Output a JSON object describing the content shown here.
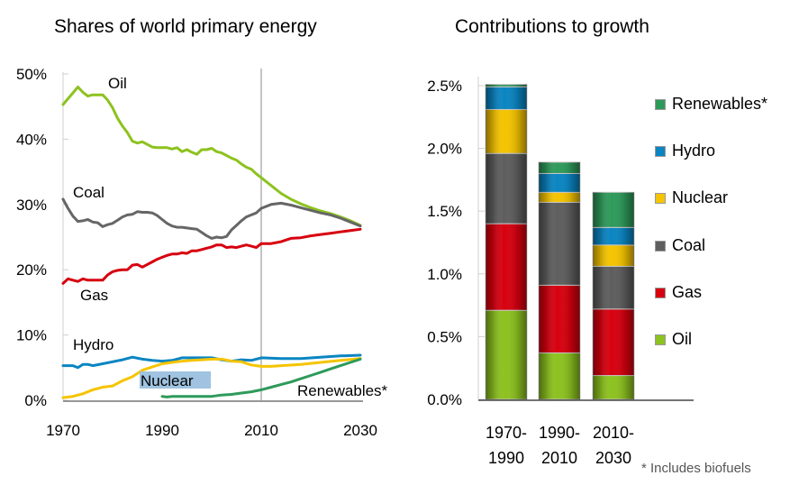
{
  "chart_data": [
    {
      "type": "line",
      "title": "Shares of world primary energy",
      "xlabel": "",
      "ylabel": "",
      "xlim": [
        1970,
        2030
      ],
      "ylim": [
        0,
        50
      ],
      "x_ticks": [
        "1970",
        "1990",
        "2010",
        "2030"
      ],
      "y_ticks": [
        "0%",
        "10%",
        "20%",
        "30%",
        "40%",
        "50%"
      ],
      "reference_line_x": 2010,
      "grid": false,
      "series": [
        {
          "name": "Oil",
          "label": "Oil",
          "color": "#8dc21f",
          "x": [
            1970,
            1971,
            1972,
            1973,
            1974,
            1975,
            1976,
            1977,
            1978,
            1979,
            1980,
            1981,
            1982,
            1983,
            1984,
            1985,
            1986,
            1987,
            1988,
            1989,
            1990,
            1991,
            1992,
            1993,
            1994,
            1995,
            1996,
            1997,
            1998,
            1999,
            2000,
            2001,
            2002,
            2003,
            2004,
            2005,
            2006,
            2007,
            2008,
            2009,
            2010,
            2012,
            2014,
            2016,
            2018,
            2020,
            2022,
            2024,
            2026,
            2028,
            2030
          ],
          "y": [
            45.3,
            46.2,
            47.1,
            48.0,
            47.2,
            46.6,
            46.8,
            46.8,
            46.8,
            46.0,
            44.8,
            43.2,
            42.0,
            41.0,
            39.7,
            39.4,
            39.6,
            39.2,
            38.8,
            38.7,
            38.7,
            38.7,
            38.5,
            38.7,
            38.1,
            38.4,
            38.0,
            37.7,
            38.4,
            38.4,
            38.6,
            38.1,
            37.9,
            37.5,
            37.1,
            36.8,
            36.2,
            35.7,
            35.4,
            34.7,
            34.1,
            32.9,
            31.7,
            30.8,
            30.1,
            29.5,
            29.0,
            28.6,
            28.1,
            27.5,
            26.8
          ]
        },
        {
          "name": "Coal",
          "label": "Coal",
          "color": "#666666",
          "x": [
            1970,
            1971,
            1972,
            1973,
            1974,
            1975,
            1976,
            1977,
            1978,
            1979,
            1980,
            1981,
            1982,
            1983,
            1984,
            1985,
            1986,
            1987,
            1988,
            1989,
            1990,
            1991,
            1992,
            1993,
            1994,
            1995,
            1996,
            1997,
            1998,
            1999,
            2000,
            2001,
            2002,
            2003,
            2004,
            2005,
            2006,
            2007,
            2008,
            2009,
            2010,
            2012,
            2014,
            2016,
            2018,
            2020,
            2022,
            2024,
            2026,
            2028,
            2030
          ],
          "y": [
            30.8,
            29.4,
            28.2,
            27.4,
            27.5,
            27.7,
            27.3,
            27.2,
            26.6,
            26.9,
            27.1,
            27.6,
            28.1,
            28.4,
            28.5,
            28.9,
            28.8,
            28.8,
            28.7,
            28.3,
            27.7,
            27.1,
            26.7,
            26.5,
            26.5,
            26.4,
            26.3,
            26.2,
            25.7,
            25.2,
            24.8,
            25.0,
            24.9,
            25.1,
            26.1,
            26.8,
            27.5,
            28.1,
            28.4,
            28.7,
            29.4,
            30.0,
            30.2,
            29.9,
            29.5,
            29.1,
            28.7,
            28.4,
            27.9,
            27.3,
            26.7
          ]
        },
        {
          "name": "Gas",
          "label": "Gas",
          "color": "#d7000f",
          "x": [
            1970,
            1971,
            1972,
            1973,
            1974,
            1975,
            1976,
            1977,
            1978,
            1979,
            1980,
            1981,
            1982,
            1983,
            1984,
            1985,
            1986,
            1987,
            1988,
            1989,
            1990,
            1991,
            1992,
            1993,
            1994,
            1995,
            1996,
            1997,
            1998,
            1999,
            2000,
            2001,
            2002,
            2003,
            2004,
            2005,
            2006,
            2007,
            2008,
            2009,
            2010,
            2012,
            2014,
            2016,
            2018,
            2020,
            2022,
            2024,
            2026,
            2028,
            2030
          ],
          "y": [
            17.9,
            18.6,
            18.4,
            18.2,
            18.6,
            18.4,
            18.4,
            18.4,
            18.4,
            19.2,
            19.7,
            19.9,
            20.0,
            20.0,
            20.7,
            20.8,
            20.4,
            20.8,
            21.2,
            21.6,
            21.9,
            22.2,
            22.4,
            22.4,
            22.6,
            22.5,
            22.9,
            22.9,
            23.1,
            23.3,
            23.5,
            23.8,
            23.8,
            23.4,
            23.5,
            23.4,
            23.6,
            23.8,
            23.6,
            23.4,
            24.0,
            24.0,
            24.3,
            24.8,
            24.9,
            25.2,
            25.4,
            25.6,
            25.8,
            26.0,
            26.2
          ]
        },
        {
          "name": "Hydro",
          "label": "Hydro",
          "color": "#0a85c2",
          "x": [
            1970,
            1972,
            1973,
            1974,
            1975,
            1976,
            1978,
            1980,
            1982,
            1984,
            1986,
            1988,
            1990,
            1992,
            1994,
            1996,
            1998,
            2000,
            2002,
            2004,
            2006,
            2008,
            2010,
            2014,
            2018,
            2022,
            2026,
            2030
          ],
          "y": [
            5.3,
            5.3,
            5.0,
            5.5,
            5.5,
            5.3,
            5.6,
            5.9,
            6.2,
            6.6,
            6.3,
            6.1,
            6.0,
            6.1,
            6.5,
            6.5,
            6.5,
            6.5,
            6.2,
            6.0,
            6.2,
            6.1,
            6.5,
            6.4,
            6.4,
            6.6,
            6.8,
            6.9
          ]
        },
        {
          "name": "Nuclear",
          "label": "Nuclear",
          "color": "#f5c400",
          "x": [
            1970,
            1972,
            1974,
            1976,
            1978,
            1980,
            1982,
            1984,
            1986,
            1988,
            1990,
            1992,
            1994,
            1996,
            1998,
            2000,
            2002,
            2004,
            2006,
            2008,
            2010,
            2012,
            2014,
            2018,
            2022,
            2026,
            2030
          ],
          "y": [
            0.4,
            0.6,
            1.0,
            1.6,
            2.0,
            2.2,
            3.0,
            3.6,
            4.6,
            5.1,
            5.6,
            5.8,
            6.0,
            6.1,
            6.2,
            6.3,
            6.3,
            6.0,
            5.9,
            5.4,
            5.2,
            5.2,
            5.3,
            5.5,
            5.8,
            6.1,
            6.4
          ]
        },
        {
          "name": "Renewables*",
          "label": "Renewables*",
          "color": "#2e9a5a",
          "x": [
            1990,
            1991,
            1992,
            1994,
            1996,
            1998,
            2000,
            2002,
            2004,
            2006,
            2008,
            2010,
            2012,
            2014,
            2016,
            2018,
            2020,
            2022,
            2024,
            2026,
            2028,
            2030
          ],
          "y": [
            0.6,
            0.5,
            0.6,
            0.6,
            0.6,
            0.6,
            0.6,
            0.8,
            0.9,
            1.1,
            1.3,
            1.6,
            2.0,
            2.4,
            2.8,
            3.3,
            3.8,
            4.3,
            4.8,
            5.3,
            5.8,
            6.3
          ]
        }
      ],
      "annotations": [
        "Oil",
        "Coal",
        "Gas",
        "Hydro",
        "Nuclear",
        "Renewables*"
      ]
    },
    {
      "type": "bar",
      "stacked": true,
      "title": "Contributions to growth",
      "xlabel": "",
      "ylabel": "",
      "ylim": [
        0,
        2.5
      ],
      "y_ticks": [
        "0.0%",
        "0.5%",
        "1.0%",
        "1.5%",
        "2.0%",
        "2.5%"
      ],
      "categories": [
        [
          "1970-",
          "1990"
        ],
        [
          "1990-",
          "2010"
        ],
        [
          "2010-",
          "2030"
        ]
      ],
      "legend_position": "right",
      "series": [
        {
          "name": "Oil",
          "color": "#8dc21f",
          "values": [
            0.71,
            0.37,
            0.19
          ]
        },
        {
          "name": "Gas",
          "color": "#d7000f",
          "values": [
            0.69,
            0.54,
            0.53
          ]
        },
        {
          "name": "Coal",
          "color": "#5e5e5e",
          "values": [
            0.56,
            0.66,
            0.34
          ]
        },
        {
          "name": "Nuclear",
          "color": "#f5c400",
          "values": [
            0.35,
            0.08,
            0.17
          ]
        },
        {
          "name": "Hydro",
          "color": "#0a85c2",
          "values": [
            0.18,
            0.15,
            0.14
          ]
        },
        {
          "name": "Renewables*",
          "color": "#2e9a5a",
          "values": [
            0.02,
            0.09,
            0.28
          ]
        }
      ],
      "legend_order": [
        "Renewables*",
        "Hydro",
        "Nuclear",
        "Coal",
        "Gas",
        "Oil"
      ]
    }
  ],
  "footnote": "* Includes biofuels"
}
